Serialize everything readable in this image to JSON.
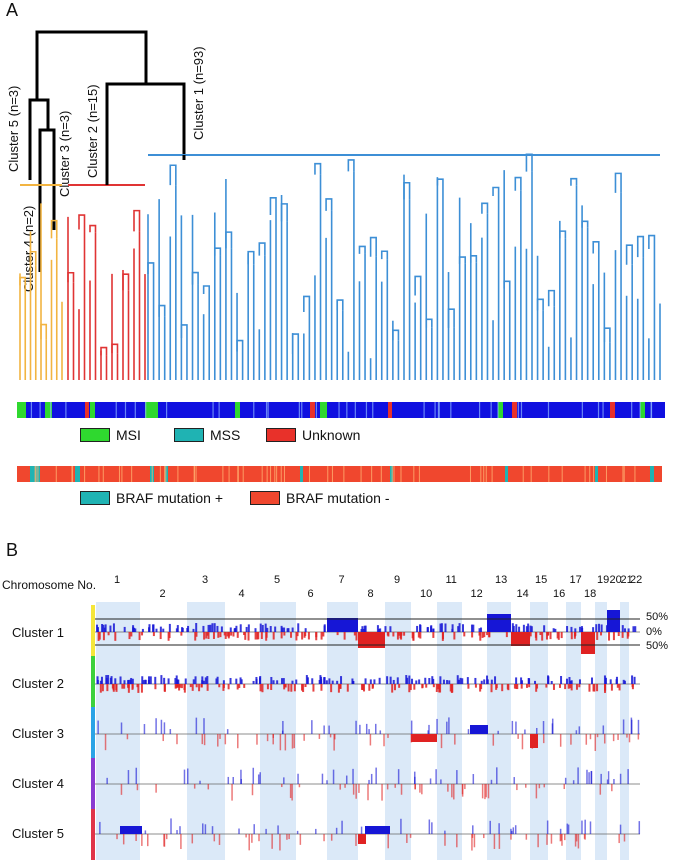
{
  "panelA": {
    "letter": "A",
    "cluster_labels": [
      "Cluster 5 (n=3)",
      "Cluster 3 (n=3)",
      "Cluster 2 (n=15)",
      "Cluster 1 (n=93)",
      "Cluster 4 (n=2)"
    ],
    "msi_legend": [
      {
        "label": "MSI",
        "color": "#2fd82f"
      },
      {
        "label": "MSS",
        "color": "#1fb3b3"
      },
      {
        "label": "Unknown",
        "color": "#e8312a"
      }
    ],
    "braf_legend": [
      {
        "label": "BRAF mutation +",
        "color": "#1fb3b3"
      },
      {
        "label": "BRAF mutation -",
        "color": "#f0472e"
      }
    ],
    "colors": {
      "cluster1": "#3d8fd6",
      "cluster2": "#e03434",
      "cluster3_4": "#f2b441",
      "top": "#000000",
      "msi_bar": "#1010e0",
      "braf_bar": "#f0472e"
    }
  },
  "panelB": {
    "letter": "B",
    "chromosome_header": "Chromosome No.",
    "chromosomes": [
      "1",
      "2",
      "3",
      "4",
      "5",
      "6",
      "7",
      "8",
      "9",
      "10",
      "11",
      "12",
      "13",
      "14",
      "15",
      "16",
      "17",
      "18",
      "19",
      "20",
      "21",
      "22"
    ],
    "clusters": [
      "Cluster 1",
      "Cluster 2",
      "Cluster 3",
      "Cluster 4",
      "Cluster 5"
    ],
    "cluster_colors": [
      "#f5e63a",
      "#3cd13c",
      "#2aa3e6",
      "#8a3ad1",
      "#e03448"
    ],
    "percent_labels": {
      "top": "50%",
      "mid": "0%",
      "bottom": "50%"
    },
    "gain_color": "#1616d6",
    "loss_color": "#e02222",
    "band_color": "#dbe9f8"
  }
}
